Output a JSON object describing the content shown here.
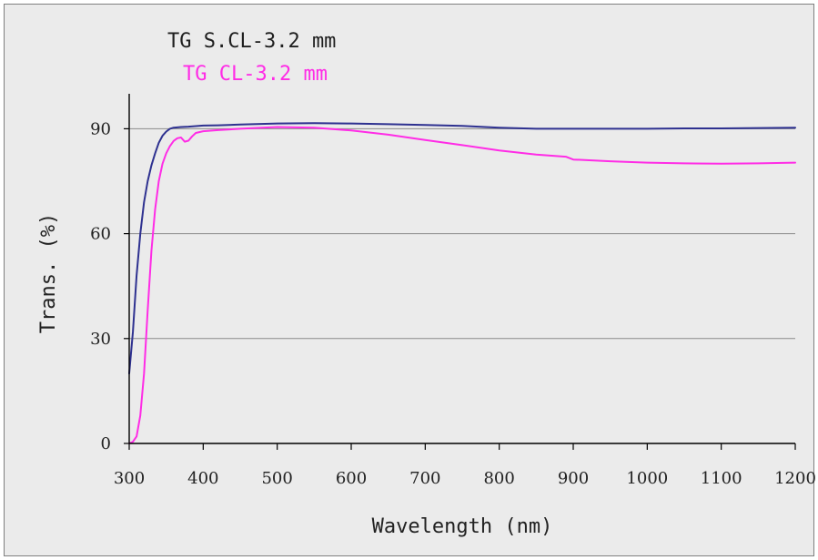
{
  "chart_data": {
    "type": "line",
    "title": "",
    "xlabel": "Wavelength (nm)",
    "ylabel": "Trans. (%)",
    "xlim": [
      300,
      1200
    ],
    "ylim": [
      0,
      100
    ],
    "x_ticks": [
      300,
      400,
      500,
      600,
      700,
      800,
      900,
      1000,
      1100,
      1200
    ],
    "x_tick_labels": [
      "300",
      "400",
      "500",
      "600",
      "700",
      "800",
      "900",
      "1000",
      "1100",
      "1200"
    ],
    "y_ticks": [
      0,
      30,
      60,
      90
    ],
    "y_tick_labels": [
      "0",
      "30",
      "60",
      "90"
    ],
    "grid": "horizontal",
    "legend_position": "top-left",
    "background_color": "#ebebeb",
    "series": [
      {
        "name": "TG S.CL-3.2 mm",
        "color": "#2e3190",
        "points": [
          [
            300,
            20
          ],
          [
            305,
            32
          ],
          [
            310,
            48
          ],
          [
            315,
            60
          ],
          [
            320,
            69
          ],
          [
            325,
            75
          ],
          [
            330,
            79.5
          ],
          [
            335,
            83
          ],
          [
            340,
            86
          ],
          [
            345,
            88
          ],
          [
            350,
            89.2
          ],
          [
            355,
            90
          ],
          [
            360,
            90.3
          ],
          [
            370,
            90.5
          ],
          [
            380,
            90.6
          ],
          [
            400,
            90.9
          ],
          [
            420,
            91
          ],
          [
            450,
            91.2
          ],
          [
            500,
            91.5
          ],
          [
            550,
            91.6
          ],
          [
            600,
            91.5
          ],
          [
            650,
            91.3
          ],
          [
            700,
            91.1
          ],
          [
            750,
            90.8
          ],
          [
            800,
            90.3
          ],
          [
            850,
            90
          ],
          [
            900,
            90
          ],
          [
            950,
            90
          ],
          [
            1000,
            90
          ],
          [
            1050,
            90.1
          ],
          [
            1100,
            90.1
          ],
          [
            1150,
            90.2
          ],
          [
            1200,
            90.3
          ]
        ]
      },
      {
        "name": "TG CL-3.2 mm",
        "color": "#ff2ce6",
        "points": [
          [
            300,
            0
          ],
          [
            305,
            0.5
          ],
          [
            310,
            2
          ],
          [
            315,
            8
          ],
          [
            320,
            20
          ],
          [
            325,
            38
          ],
          [
            330,
            55
          ],
          [
            335,
            67
          ],
          [
            340,
            75
          ],
          [
            345,
            80
          ],
          [
            350,
            83
          ],
          [
            355,
            85
          ],
          [
            360,
            86.5
          ],
          [
            365,
            87.3
          ],
          [
            370,
            87.5
          ],
          [
            375,
            86.3
          ],
          [
            380,
            86.6
          ],
          [
            385,
            87.8
          ],
          [
            390,
            88.8
          ],
          [
            400,
            89.3
          ],
          [
            420,
            89.6
          ],
          [
            450,
            90
          ],
          [
            500,
            90.5
          ],
          [
            550,
            90.3
          ],
          [
            600,
            89.5
          ],
          [
            650,
            88.3
          ],
          [
            700,
            86.8
          ],
          [
            750,
            85.3
          ],
          [
            800,
            83.8
          ],
          [
            850,
            82.6
          ],
          [
            890,
            82
          ],
          [
            900,
            81.2
          ],
          [
            950,
            80.7
          ],
          [
            1000,
            80.3
          ],
          [
            1050,
            80.1
          ],
          [
            1100,
            80
          ],
          [
            1150,
            80.1
          ],
          [
            1200,
            80.3
          ]
        ]
      }
    ]
  }
}
